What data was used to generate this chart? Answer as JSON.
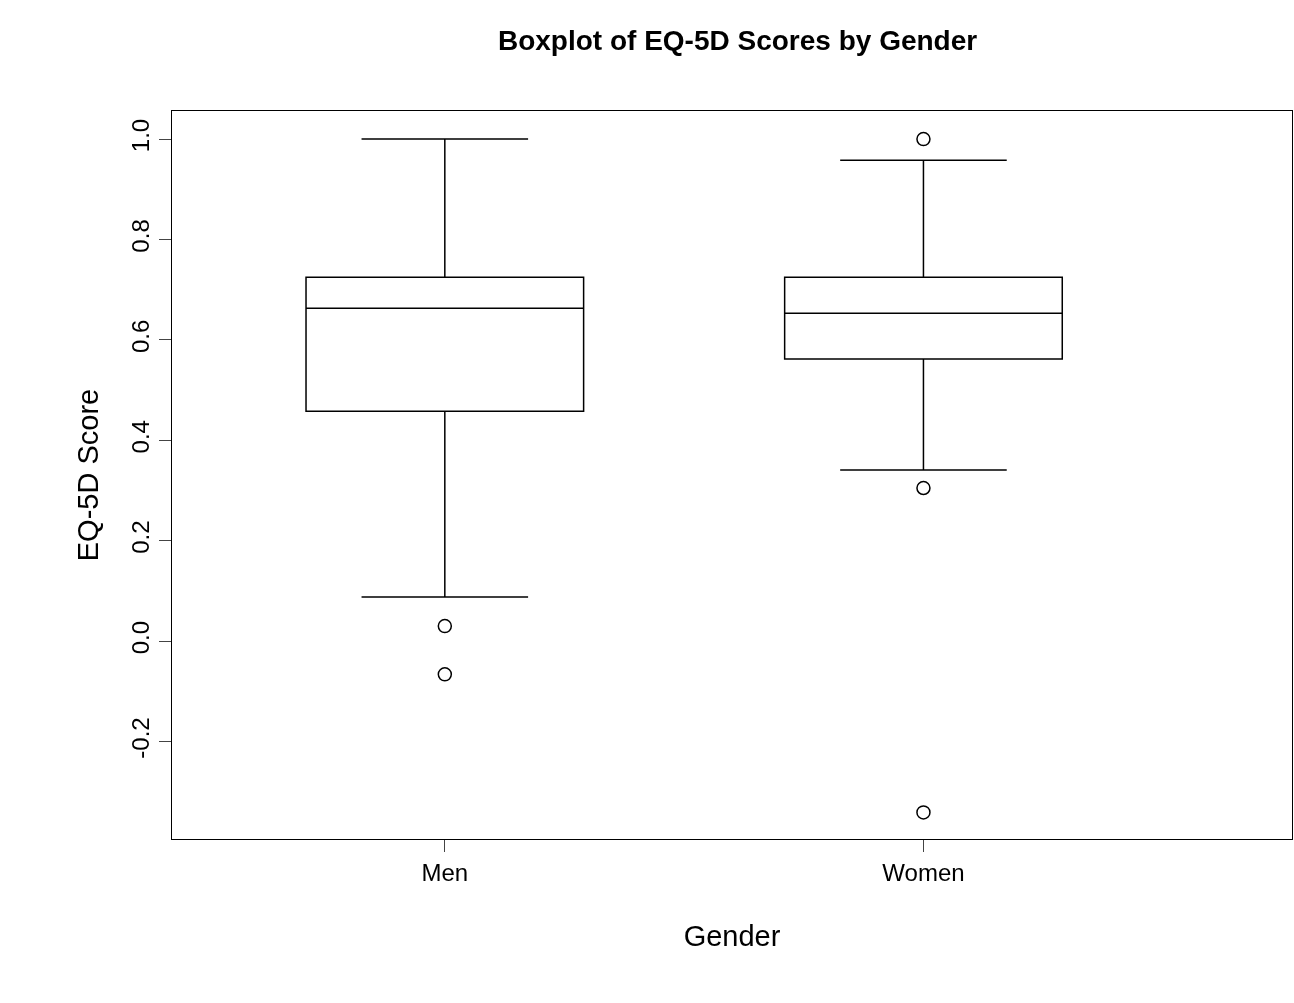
{
  "chart_data": {
    "type": "box",
    "title": "Boxplot of EQ-5D Scores by Gender",
    "xlabel": "Gender",
    "ylabel": "EQ-5D Score",
    "categories": [
      "Men",
      "Women"
    ],
    "boxes": [
      {
        "low": 0.088,
        "q1": 0.458,
        "median": 0.663,
        "q3": 0.725,
        "high": 1.0,
        "outliers": [
          0.03,
          -0.066
        ]
      },
      {
        "low": 0.341,
        "q1": 0.562,
        "median": 0.653,
        "q3": 0.725,
        "high": 0.958,
        "outliers": [
          1.0,
          0.305,
          -0.341
        ]
      }
    ],
    "color": "#000000",
    "ylim": [
      -0.394,
      1.056
    ],
    "yticks": [
      {
        "value": -0.2,
        "label": "-0.2"
      },
      {
        "value": 0,
        "label": "0.0"
      },
      {
        "value": 0.2,
        "label": "0.2"
      },
      {
        "value": 0.4,
        "label": "0.4"
      },
      {
        "value": 0.6,
        "label": "0.6"
      },
      {
        "value": 0.8,
        "label": "0.8"
      },
      {
        "value": 1,
        "label": "1.0"
      }
    ]
  }
}
